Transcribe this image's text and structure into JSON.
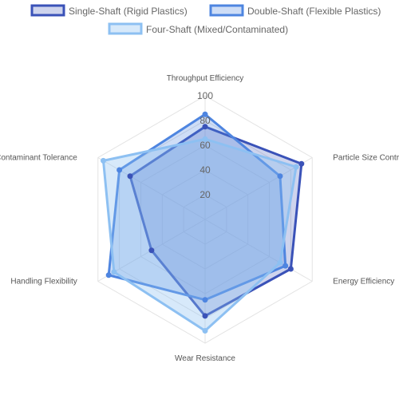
{
  "chart_data": {
    "type": "radar",
    "axes": [
      "Throughput Efficiency",
      "Particle Size Control",
      "Energy Efficiency",
      "Wear Resistance",
      "Handling Flexibility",
      "Contaminant Tolerance"
    ],
    "ticks": [
      "20",
      "40",
      "60",
      "80",
      "100"
    ],
    "rrange": [
      0,
      100
    ],
    "legend_position": "top",
    "grid": true,
    "series": [
      {
        "name": "Single-Shaft (Rigid Plastics)",
        "values": [
          75,
          90,
          80,
          78,
          50,
          70
        ],
        "stroke": "#3a52b8",
        "fill": "rgba(58,82,184,0.25)"
      },
      {
        "name": "Double-Shaft (Flexible Plastics)",
        "values": [
          85,
          70,
          75,
          65,
          90,
          80
        ],
        "stroke": "#4e85e0",
        "fill": "rgba(78,133,224,0.28)"
      },
      {
        "name": "Four-Shaft (Mixed/Contaminated)",
        "values": [
          65,
          85,
          70,
          90,
          85,
          95
        ],
        "stroke": "#8dc0f2",
        "fill": "rgba(141,192,242,0.35)"
      }
    ]
  }
}
